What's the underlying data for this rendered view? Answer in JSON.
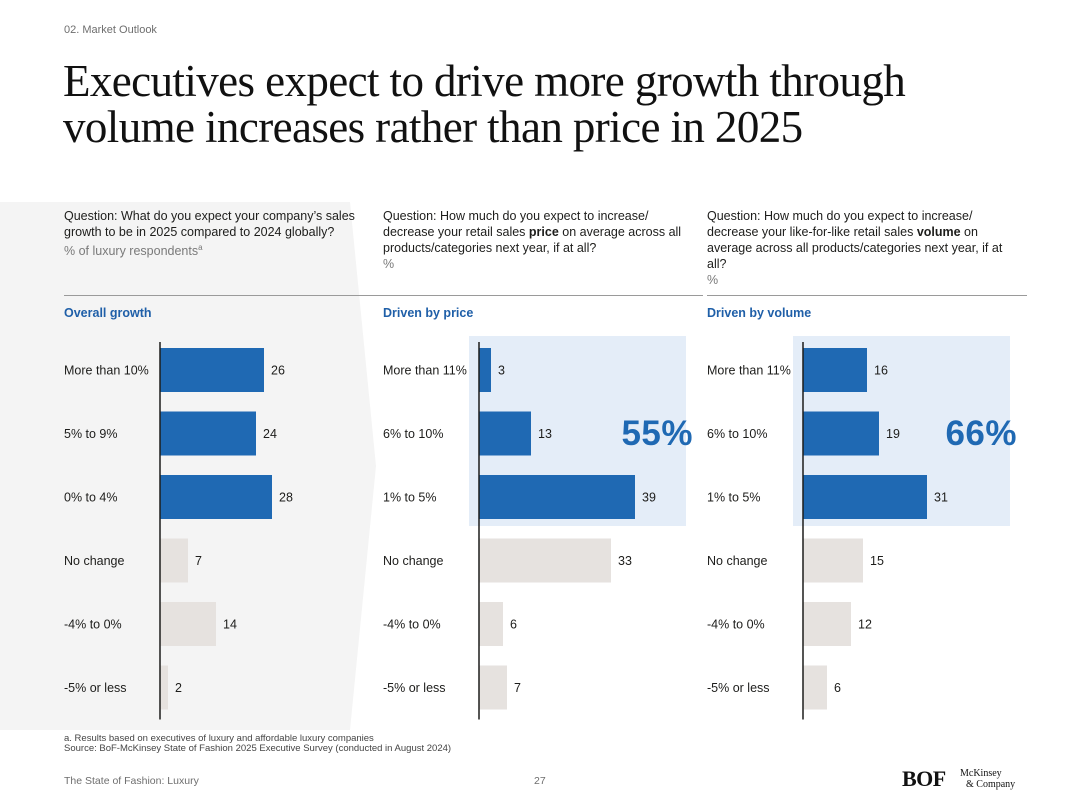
{
  "header": {
    "section": "02. Market Outlook",
    "title": "Executives expect to drive more growth through volume increases rather than price in 2025"
  },
  "colors": {
    "accent_bar": "#1f69b3",
    "neutral_bar": "#e6e2df",
    "highlight_bg": "#e4edf8",
    "arrow_bg": "#f4f4f4",
    "heading_blue": "#1f5fa8"
  },
  "panels": [
    {
      "question": "Question: What do you expect your company’s sales growth to be in 2025 compared to 2024 globally?",
      "unit": "% of luxury respondents",
      "unit_sup": "a",
      "chart_heading": "Overall growth"
    },
    {
      "question_pre": "Question: How much do you expect to increase/ decrease your retail sales ",
      "question_bold": "price",
      "question_post": " on average across all products/categories next year, if at all?",
      "unit": "%",
      "chart_heading": "Driven by price",
      "highlight_value": "55%"
    },
    {
      "question_pre": "Question: How much do you expect to increase/ decrease your like-for-like retail sales ",
      "question_bold": "volume",
      "question_post": " on average across all products/categories next year, if at all?",
      "unit": "%",
      "chart_heading": "Driven by volume",
      "highlight_value": "66%"
    }
  ],
  "chart_data": [
    {
      "type": "bar",
      "orientation": "horizontal",
      "title": "Overall growth",
      "categories": [
        "More than 10%",
        "5% to 9%",
        "0% to 4%",
        "No change",
        "-4% to 0%",
        "-5% or less"
      ],
      "values": [
        26,
        24,
        28,
        7,
        14,
        2
      ],
      "highlighted": [
        true,
        true,
        true,
        false,
        false,
        false
      ],
      "xlim": [
        0,
        40
      ]
    },
    {
      "type": "bar",
      "orientation": "horizontal",
      "title": "Driven by price",
      "categories": [
        "More than 11%",
        "6% to 10%",
        "1% to 5%",
        "No change",
        "-4% to 0%",
        "-5% or less"
      ],
      "values": [
        3,
        13,
        39,
        33,
        6,
        7
      ],
      "highlighted": [
        true,
        true,
        true,
        false,
        false,
        false
      ],
      "xlim": [
        0,
        40
      ]
    },
    {
      "type": "bar",
      "orientation": "horizontal",
      "title": "Driven by volume",
      "categories": [
        "More than 11%",
        "6% to 10%",
        "1% to 5%",
        "No change",
        "-4% to 0%",
        "-5% or less"
      ],
      "values": [
        16,
        19,
        31,
        15,
        12,
        6
      ],
      "highlighted": [
        true,
        true,
        true,
        false,
        false,
        false
      ],
      "xlim": [
        0,
        40
      ]
    }
  ],
  "footnote": {
    "note": "a. Results based on executives of luxury and affordable luxury companies",
    "source": "Source: BoF-McKinsey State of Fashion 2025 Executive Survey (conducted in August 2024)"
  },
  "footer": {
    "left": "The State of Fashion: Luxury",
    "page": "27",
    "logo_bof": "BOF",
    "logo_mck_line1": "McKinsey",
    "logo_mck_line2": "& Company"
  }
}
